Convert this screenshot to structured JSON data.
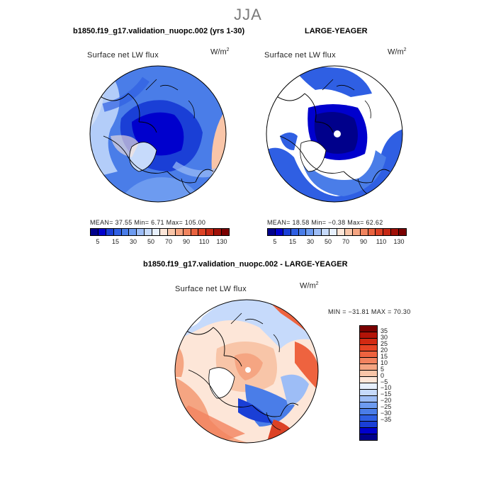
{
  "season": "JJA",
  "panels": {
    "left": {
      "header": "b1850.f19_g17.validation_nuopc.002 (yrs 1-30)",
      "title": "Surface net LW flux",
      "units_base": "W/m",
      "units_exp": "2",
      "stats": "MEAN=  37.55  Min=    6.71  Max= 105.00"
    },
    "right": {
      "header": "LARGE-YEAGER",
      "title": "Surface net LW flux",
      "units_base": "W/m",
      "units_exp": "2",
      "stats": "MEAN=  18.58  Min=  −0.38  Max=  62.62"
    },
    "diff": {
      "header": "b1850.f19_g17.validation_nuopc.002 - LARGE-YEAGER",
      "title": "Surface net LW flux",
      "units_base": "W/m",
      "units_exp": "2",
      "stats": "MIN = −31.81 MAX =  70.30"
    }
  },
  "colorbar_abs": {
    "colors": [
      "#00008b",
      "#0000cd",
      "#1a3fd6",
      "#2f5fe3",
      "#4a7de8",
      "#6d9bf0",
      "#9dbdf6",
      "#c6dafb",
      "#e7f0fd",
      "#fde6d8",
      "#f9c5a8",
      "#f5a582",
      "#f0845e",
      "#e9633f",
      "#dc4225",
      "#c72814",
      "#a01008",
      "#7a0000"
    ],
    "labels": [
      "5",
      "15",
      "30",
      "50",
      "70",
      "90",
      "110",
      "130"
    ]
  },
  "colorbar_diff": {
    "colors": [
      "#7a0000",
      "#b41408",
      "#d22a12",
      "#e64424",
      "#ee633f",
      "#f2835f",
      "#f5a582",
      "#f8c5a8",
      "#fde6d8",
      "#e7f0fd",
      "#c6dafb",
      "#9dbdf6",
      "#6d9bf0",
      "#4a7de8",
      "#2f5fe3",
      "#1a3fd6",
      "#0000cd",
      "#00008b"
    ],
    "labels": [
      "35",
      "30",
      "25",
      "20",
      "15",
      "10",
      "5",
      "0",
      "−5",
      "−10",
      "−15",
      "−20",
      "−25",
      "−30",
      "−35"
    ]
  }
}
